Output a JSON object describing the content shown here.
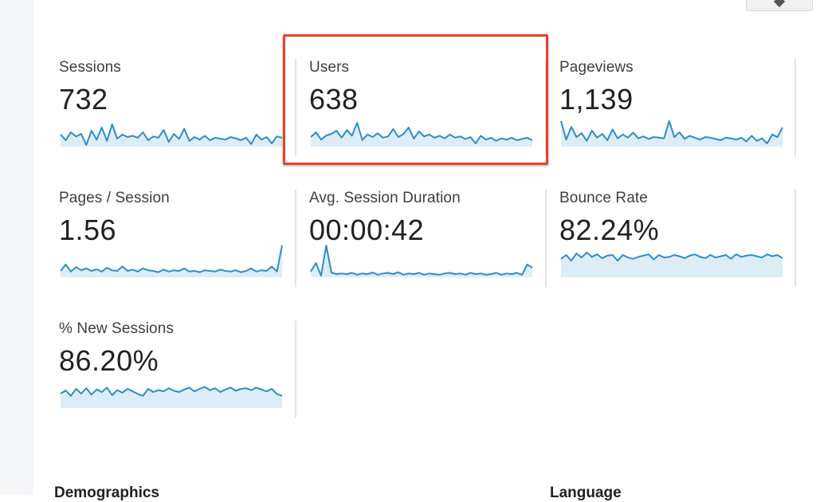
{
  "colors": {
    "spark_line": "#2e8dc8",
    "spark_fill": "#dcedf8",
    "highlight": "#e8412c"
  },
  "metrics": [
    {
      "label": "Sessions",
      "value": "732",
      "spark": [
        0.62,
        0.8,
        0.55,
        0.68,
        0.6,
        0.95,
        0.5,
        0.78,
        0.4,
        0.82,
        0.3,
        0.75,
        0.62,
        0.7,
        0.66,
        0.72,
        0.55,
        0.8,
        0.68,
        0.72,
        0.48,
        0.85,
        0.6,
        0.76,
        0.44,
        0.82,
        0.7,
        0.78,
        0.66,
        0.8,
        0.72,
        0.75,
        0.78,
        0.7,
        0.74,
        0.8,
        0.72,
        0.92,
        0.62,
        0.78,
        0.7,
        0.9,
        0.68,
        0.72
      ]
    },
    {
      "label": "Users",
      "value": "638",
      "spark": [
        0.7,
        0.55,
        0.78,
        0.65,
        0.6,
        0.5,
        0.72,
        0.48,
        0.66,
        0.25,
        0.8,
        0.62,
        0.7,
        0.58,
        0.72,
        0.68,
        0.45,
        0.7,
        0.6,
        0.4,
        0.75,
        0.52,
        0.68,
        0.62,
        0.72,
        0.66,
        0.74,
        0.62,
        0.72,
        0.68,
        0.76,
        0.7,
        0.9,
        0.66,
        0.78,
        0.72,
        0.82,
        0.74,
        0.78,
        0.72,
        0.8,
        0.76,
        0.72,
        0.8
      ]
    },
    {
      "label": "Pageviews",
      "value": "1,139",
      "spark": [
        0.2,
        0.78,
        0.38,
        0.7,
        0.58,
        0.82,
        0.5,
        0.72,
        0.6,
        0.8,
        0.46,
        0.74,
        0.62,
        0.72,
        0.56,
        0.74,
        0.68,
        0.76,
        0.7,
        0.72,
        0.74,
        0.2,
        0.7,
        0.55,
        0.76,
        0.66,
        0.72,
        0.78,
        0.7,
        0.72,
        0.76,
        0.8,
        0.72,
        0.74,
        0.78,
        0.72,
        0.84,
        0.66,
        0.82,
        0.74,
        0.9,
        0.62,
        0.7,
        0.4
      ]
    },
    {
      "label": "Pages / Session",
      "value": "1.56",
      "spark": [
        0.8,
        0.6,
        0.82,
        0.68,
        0.78,
        0.72,
        0.8,
        0.75,
        0.82,
        0.7,
        0.78,
        0.8,
        0.66,
        0.8,
        0.76,
        0.82,
        0.72,
        0.78,
        0.8,
        0.84,
        0.76,
        0.82,
        0.78,
        0.8,
        0.72,
        0.82,
        0.8,
        0.84,
        0.78,
        0.8,
        0.82,
        0.76,
        0.8,
        0.82,
        0.78,
        0.84,
        0.8,
        0.72,
        0.82,
        0.78,
        0.8,
        0.66,
        0.82,
        0.0
      ]
    },
    {
      "label": "Avg. Session Duration",
      "value": "00:00:42",
      "spark": [
        0.82,
        0.55,
        0.95,
        0.0,
        0.85,
        0.9,
        0.88,
        0.9,
        0.86,
        0.92,
        0.88,
        0.9,
        0.85,
        0.92,
        0.88,
        0.86,
        0.9,
        0.84,
        0.92,
        0.88,
        0.9,
        0.86,
        0.92,
        0.88,
        0.9,
        0.92,
        0.88,
        0.86,
        0.9,
        0.88,
        0.92,
        0.86,
        0.9,
        0.88,
        0.92,
        0.9,
        0.86,
        0.92,
        0.88,
        0.9,
        0.86,
        0.92,
        0.6,
        0.7
      ]
    },
    {
      "label": "Bounce Rate",
      "value": "82.24%",
      "spark": [
        0.42,
        0.3,
        0.48,
        0.25,
        0.38,
        0.22,
        0.36,
        0.28,
        0.4,
        0.32,
        0.3,
        0.48,
        0.3,
        0.38,
        0.42,
        0.36,
        0.32,
        0.28,
        0.44,
        0.3,
        0.38,
        0.36,
        0.3,
        0.34,
        0.4,
        0.32,
        0.28,
        0.36,
        0.4,
        0.3,
        0.38,
        0.34,
        0.3,
        0.42,
        0.28,
        0.36,
        0.32,
        0.3,
        0.34,
        0.38,
        0.28,
        0.34,
        0.3,
        0.4
      ]
    },
    {
      "label": "% New Sessions",
      "value": "86.20%",
      "spark": [
        0.55,
        0.45,
        0.62,
        0.4,
        0.55,
        0.38,
        0.58,
        0.42,
        0.5,
        0.36,
        0.6,
        0.44,
        0.52,
        0.4,
        0.48,
        0.56,
        0.62,
        0.4,
        0.5,
        0.44,
        0.48,
        0.38,
        0.46,
        0.5,
        0.42,
        0.36,
        0.48,
        0.4,
        0.34,
        0.44,
        0.38,
        0.5,
        0.42,
        0.36,
        0.46,
        0.4,
        0.38,
        0.44,
        0.36,
        0.42,
        0.48,
        0.4,
        0.56,
        0.62
      ]
    }
  ],
  "sections": {
    "demographics": "Demographics",
    "language": "Language"
  }
}
